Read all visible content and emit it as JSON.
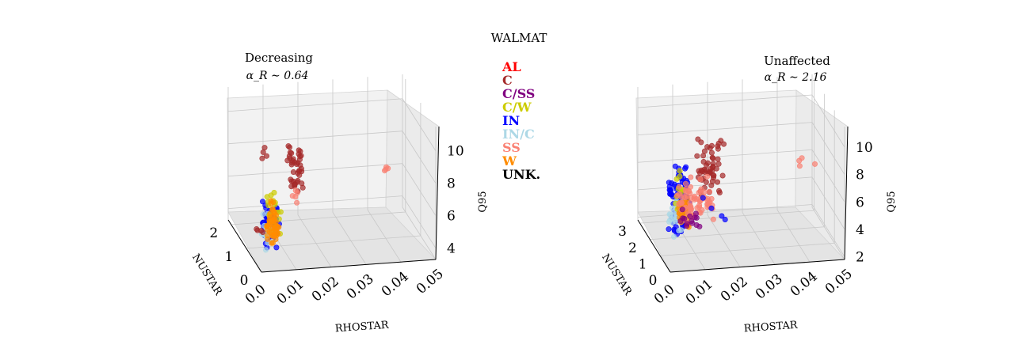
{
  "figure_title": "WALMAT",
  "legend": {
    "items": [
      {
        "label": "AL",
        "color": "#ff0000"
      },
      {
        "label": "C",
        "color": "#a52a2a"
      },
      {
        "label": "C/SS",
        "color": "#800080"
      },
      {
        "label": "C/W",
        "color": "#cccc00"
      },
      {
        "label": "IN",
        "color": "#0000ff"
      },
      {
        "label": "IN/C",
        "color": "#add8e6"
      },
      {
        "label": "SS",
        "color": "#fa8072"
      },
      {
        "label": "W",
        "color": "#ff8c00"
      },
      {
        "label": "UNK.",
        "color": "#000000"
      }
    ]
  },
  "chart_data": [
    {
      "type": "scatter3d",
      "title": "Decreasing",
      "subtitle": "α_R ∼ 0.64",
      "xlabel": "RHOSTAR",
      "ylabel": "NUSTAR",
      "zlabel": "Q95",
      "x_ticks": [
        "0.00",
        "0.01",
        "0.02",
        "0.03",
        "0.04",
        "0.05"
      ],
      "y_ticks": [
        "0",
        "1",
        "2"
      ],
      "z_ticks": [
        "4",
        "6",
        "8",
        "10"
      ],
      "xlim": [
        0,
        0.05
      ],
      "ylim": [
        0,
        2.2
      ],
      "zlim": [
        3.3,
        11.5
      ],
      "grid": true,
      "clusters": [
        {
          "class": "IN",
          "color": "#0000ff",
          "n": 60,
          "x": [
            0.0015,
            0.0055
          ],
          "y": [
            0.05,
            0.4
          ],
          "z": [
            4.5,
            7.3
          ],
          "seed": 11
        },
        {
          "class": "IN/C",
          "color": "#add8e6",
          "n": 25,
          "x": [
            0.001,
            0.004
          ],
          "y": [
            0.0,
            0.3
          ],
          "z": [
            4.3,
            6.8
          ],
          "seed": 12
        },
        {
          "class": "C/W",
          "color": "#cccc00",
          "n": 18,
          "x": [
            0.002,
            0.006
          ],
          "y": [
            0.05,
            0.3
          ],
          "z": [
            4.8,
            8.7
          ],
          "seed": 13
        },
        {
          "class": "W",
          "color": "#ff8c00",
          "n": 55,
          "x": [
            0.0025,
            0.0055
          ],
          "y": [
            0.05,
            0.35
          ],
          "z": [
            4.5,
            7.6
          ],
          "seed": 14
        },
        {
          "class": "C",
          "color": "#a52a2a",
          "n": 40,
          "x": [
            0.0085,
            0.0125
          ],
          "y": [
            0.05,
            0.3
          ],
          "z": [
            7.6,
            11.0
          ],
          "seed": 15
        },
        {
          "class": "C",
          "color": "#a52a2a",
          "n": 4,
          "x": [
            0.0005,
            0.0025
          ],
          "y": [
            0.0,
            0.15
          ],
          "z": [
            9.8,
            11.2
          ],
          "seed": 16
        },
        {
          "class": "C",
          "color": "#a52a2a",
          "n": 4,
          "x": [
            0.003,
            0.005
          ],
          "y": [
            0.8,
            1.2
          ],
          "z": [
            3.8,
            5.0
          ],
          "seed": 17
        },
        {
          "class": "SS",
          "color": "#fa8072",
          "n": 5,
          "x": [
            0.0095,
            0.012
          ],
          "y": [
            0.05,
            0.3
          ],
          "z": [
            7.2,
            8.2
          ],
          "seed": 18
        },
        {
          "class": "SS",
          "color": "#fa8072",
          "n": 4,
          "x": [
            0.036,
            0.039
          ],
          "y": [
            0.1,
            0.2
          ],
          "z": [
            8.5,
            9.3
          ],
          "seed": 19
        }
      ]
    },
    {
      "type": "scatter3d",
      "title": "Unaffected",
      "subtitle": "α_R ∼ 2.16",
      "xlabel": "RHOSTAR",
      "ylabel": "NUSTAR",
      "zlabel": "Q95",
      "x_ticks": [
        "0.00",
        "0.01",
        "0.02",
        "0.03",
        "0.04",
        "0.05"
      ],
      "y_ticks": [
        "0",
        "1",
        "2",
        "3"
      ],
      "z_ticks": [
        "2",
        "4",
        "6",
        "8",
        "10"
      ],
      "xlim": [
        0,
        0.05
      ],
      "ylim": [
        0,
        3.2
      ],
      "zlim": [
        1.8,
        11.5
      ],
      "grid": true,
      "clusters": [
        {
          "class": "IN",
          "color": "#0000ff",
          "n": 80,
          "x": [
            0.0005,
            0.006
          ],
          "y": [
            0.0,
            0.5
          ],
          "z": [
            4.0,
            9.8
          ],
          "seed": 21
        },
        {
          "class": "IN/C",
          "color": "#add8e6",
          "n": 25,
          "x": [
            0.0005,
            0.004
          ],
          "y": [
            0.0,
            0.4
          ],
          "z": [
            4.0,
            7.0
          ],
          "seed": 22
        },
        {
          "class": "C/W",
          "color": "#cccc00",
          "n": 10,
          "x": [
            0.002,
            0.005
          ],
          "y": [
            0.05,
            0.3
          ],
          "z": [
            5.5,
            9.5
          ],
          "seed": 23
        },
        {
          "class": "W",
          "color": "#ff8c00",
          "n": 35,
          "x": [
            0.003,
            0.0065
          ],
          "y": [
            0.05,
            0.35
          ],
          "z": [
            4.5,
            7.2
          ],
          "seed": 24
        },
        {
          "class": "C",
          "color": "#a52a2a",
          "n": 55,
          "x": [
            0.0085,
            0.016
          ],
          "y": [
            0.0,
            0.3
          ],
          "z": [
            6.8,
            11.3
          ],
          "seed": 25
        },
        {
          "class": "SS",
          "color": "#fa8072",
          "n": 70,
          "x": [
            0.005,
            0.014
          ],
          "y": [
            0.2,
            1.3
          ],
          "z": [
            4.5,
            7.5
          ],
          "seed": 26
        },
        {
          "class": "SS",
          "color": "#fa8072",
          "n": 4,
          "x": [
            0.036,
            0.042
          ],
          "y": [
            0.1,
            0.2
          ],
          "z": [
            8.6,
            9.5
          ],
          "seed": 27
        },
        {
          "class": "C/SS",
          "color": "#800080",
          "n": 14,
          "x": [
            0.006,
            0.011
          ],
          "y": [
            0.8,
            1.4
          ],
          "z": [
            3.6,
            4.9
          ],
          "seed": 28
        },
        {
          "class": "IN",
          "color": "#0000ff",
          "n": 4,
          "x": [
            0.012,
            0.019
          ],
          "y": [
            0.4,
            1.6
          ],
          "z": [
            3.2,
            6.0
          ],
          "seed": 29
        }
      ]
    }
  ]
}
